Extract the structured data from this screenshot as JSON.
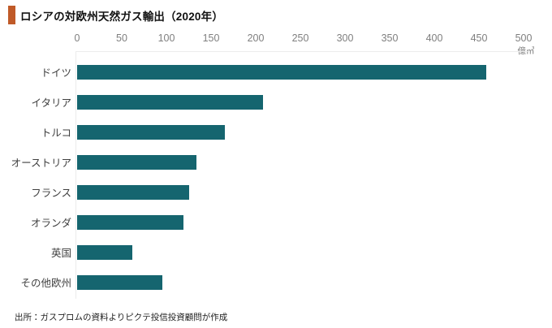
{
  "header": {
    "title": "ロシアの対欧州天然ガス輸出（2020年）"
  },
  "footer": {
    "source": "出所：ガスプロムの資料よりピクテ投信投資顧問が作成"
  },
  "colors": {
    "bar": "#15656f",
    "title_accent": "#c05a28",
    "tick_text": "#7f7f7f",
    "category_text": "#404040"
  },
  "chart_data": {
    "type": "bar",
    "orientation": "horizontal",
    "title": "ロシアの対欧州天然ガス輸出（2020年）",
    "unit_label": "億㎥",
    "categories": [
      "ドイツ",
      "イタリア",
      "トルコ",
      "オーストリア",
      "フランス",
      "オランダ",
      "英国",
      "その他欧州"
    ],
    "values": [
      458,
      208,
      165,
      134,
      125,
      119,
      62,
      95
    ],
    "xlabel": "",
    "ylabel": "",
    "xlim": [
      0,
      500
    ],
    "xticks": [
      0,
      50,
      100,
      150,
      200,
      250,
      300,
      350,
      400,
      450,
      500
    ],
    "grid": false,
    "legend": false,
    "source": "出所：ガスプロムの資料よりピクテ投信投資顧問が作成"
  }
}
